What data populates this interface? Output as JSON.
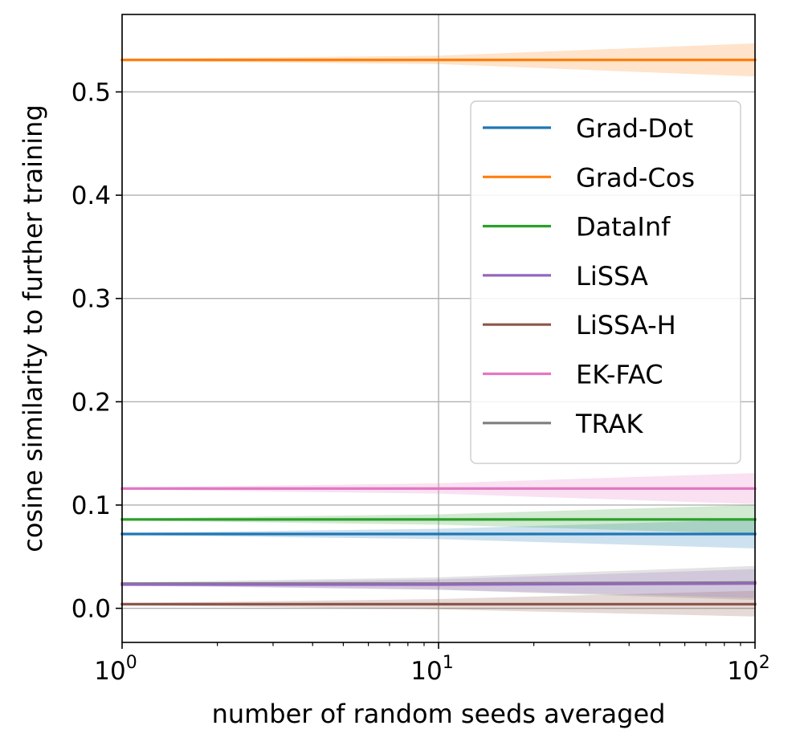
{
  "chart_data": {
    "type": "line",
    "xscale": "log",
    "xlabel": "number of random seeds averaged",
    "ylabel": "cosine similarity to further training",
    "xlim": [
      1,
      100
    ],
    "ylim": [
      -0.033,
      0.575
    ],
    "grid": true,
    "legend_position": "upper-right",
    "x_ticks": [
      {
        "value": 1,
        "base": "10",
        "exp": "0"
      },
      {
        "value": 10,
        "base": "10",
        "exp": "1"
      },
      {
        "value": 100,
        "base": "10",
        "exp": "2"
      }
    ],
    "y_ticks": [
      {
        "value": 0.0,
        "label": "0.0"
      },
      {
        "value": 0.1,
        "label": "0.1"
      },
      {
        "value": 0.2,
        "label": "0.2"
      },
      {
        "value": 0.3,
        "label": "0.3"
      },
      {
        "value": 0.4,
        "label": "0.4"
      },
      {
        "value": 0.5,
        "label": "0.5"
      }
    ],
    "series": [
      {
        "name": "Grad-Dot",
        "color": "#1f77b4",
        "x": [
          1,
          10,
          100
        ],
        "y": [
          0.072,
          0.072,
          0.072
        ],
        "band": [
          [
            0.071,
            0.073
          ],
          [
            0.067,
            0.077
          ],
          [
            0.058,
            0.086
          ]
        ]
      },
      {
        "name": "Grad-Cos",
        "color": "#ff7f0e",
        "x": [
          1,
          10,
          100
        ],
        "y": [
          0.531,
          0.531,
          0.531
        ],
        "band": [
          [
            0.53,
            0.532
          ],
          [
            0.527,
            0.535
          ],
          [
            0.515,
            0.547
          ]
        ]
      },
      {
        "name": "DataInf",
        "color": "#2ca02c",
        "x": [
          1,
          10,
          100
        ],
        "y": [
          0.086,
          0.086,
          0.086
        ],
        "band": [
          [
            0.085,
            0.087
          ],
          [
            0.081,
            0.091
          ],
          [
            0.072,
            0.1
          ]
        ]
      },
      {
        "name": "LiSSA",
        "color": "#9467bd",
        "x": [
          1,
          10,
          100
        ],
        "y": [
          0.023,
          0.023,
          0.024
        ],
        "band": [
          [
            0.022,
            0.024
          ],
          [
            0.018,
            0.028
          ],
          [
            0.01,
            0.038
          ]
        ]
      },
      {
        "name": "LiSSA-H",
        "color": "#8c564b",
        "x": [
          1,
          10,
          100
        ],
        "y": [
          0.004,
          0.004,
          0.004
        ],
        "band": [
          [
            0.003,
            0.005
          ],
          [
            -0.001,
            0.009
          ],
          [
            -0.008,
            0.017
          ]
        ]
      },
      {
        "name": "EK-FAC",
        "color": "#e377c2",
        "x": [
          1,
          10,
          100
        ],
        "y": [
          0.116,
          0.116,
          0.116
        ],
        "band": [
          [
            0.115,
            0.117
          ],
          [
            0.111,
            0.121
          ],
          [
            0.101,
            0.131
          ]
        ]
      },
      {
        "name": "TRAK",
        "color": "#7f7f7f",
        "x": [
          1,
          10,
          100
        ],
        "y": [
          0.024,
          0.024,
          0.025
        ],
        "band": [
          [
            0.023,
            0.025
          ],
          [
            0.018,
            0.03
          ],
          [
            0.008,
            0.041
          ]
        ]
      }
    ],
    "draw_order": [
      "TRAK",
      "LiSSA-H",
      "LiSSA",
      "Grad-Dot",
      "DataInf",
      "EK-FAC",
      "Grad-Cos"
    ]
  }
}
